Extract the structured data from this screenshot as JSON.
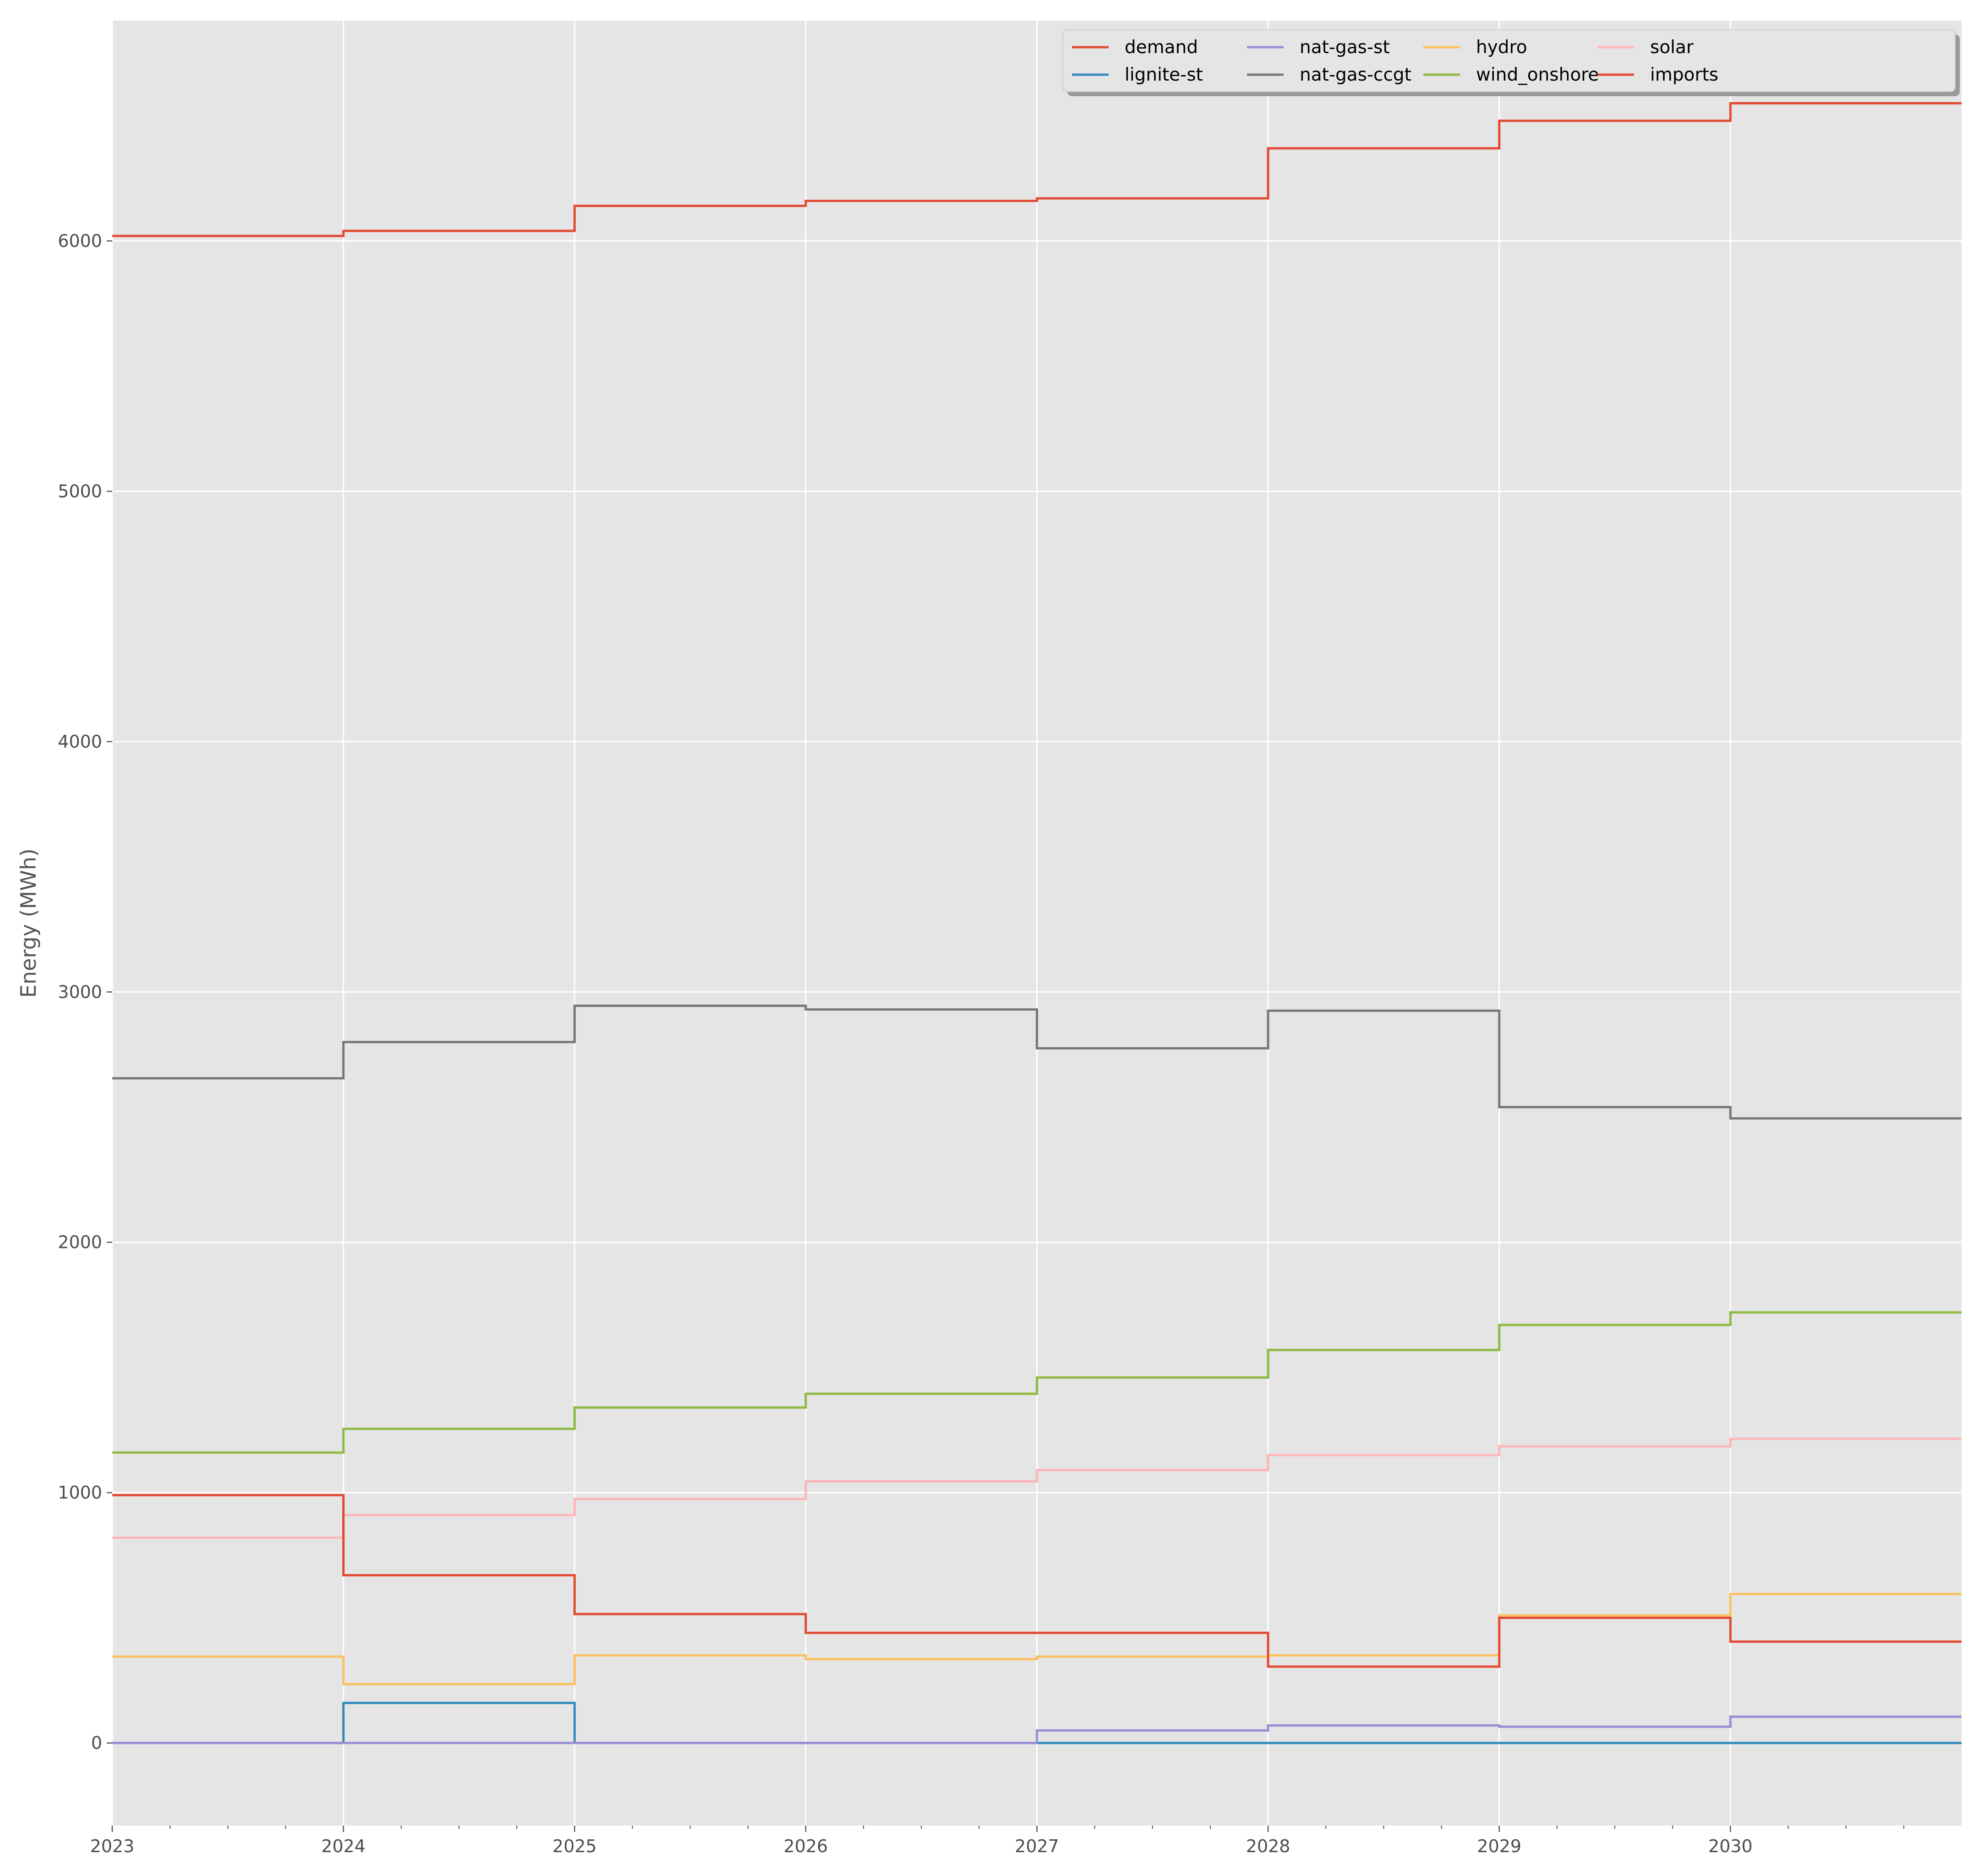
{
  "chart_data": {
    "type": "line",
    "step": true,
    "title": "",
    "xlabel": "",
    "ylabel": "Energy (MWh)",
    "x": [
      2023,
      2024,
      2025,
      2026,
      2027,
      2028,
      2029,
      2030
    ],
    "xlim": [
      2023,
      2031
    ],
    "ylim": [
      -330,
      6880
    ],
    "x_ticks": [
      "2023",
      "2024",
      "2025",
      "2026",
      "2027",
      "2028",
      "2029",
      "2030"
    ],
    "y_ticks": [
      "0",
      "1000",
      "2000",
      "3000",
      "4000",
      "5000",
      "6000"
    ],
    "grid": true,
    "legend_position": "top-right",
    "legend_columns": 5,
    "series": [
      {
        "name": "demand",
        "color": "#E24A33",
        "values": [
          6020,
          6040,
          6140,
          6160,
          6170,
          6370,
          6480,
          6550
        ]
      },
      {
        "name": "lignite-st",
        "color": "#348ABD",
        "values": [
          0,
          160,
          0,
          0,
          0,
          0,
          0,
          0
        ]
      },
      {
        "name": "nat-gas-st",
        "color": "#988ED5",
        "values": [
          0,
          0,
          0,
          0,
          50,
          70,
          65,
          105
        ]
      },
      {
        "name": "nat-gas-ccgt",
        "color": "#777777",
        "values": [
          2655,
          2800,
          2945,
          2930,
          2775,
          2925,
          2540,
          2495
        ]
      },
      {
        "name": "hydro",
        "color": "#FBC15E",
        "values": [
          345,
          235,
          350,
          335,
          345,
          350,
          510,
          595
        ]
      },
      {
        "name": "wind_onshore",
        "color": "#8EBA42",
        "values": [
          1160,
          1255,
          1340,
          1395,
          1460,
          1570,
          1670,
          1720
        ]
      },
      {
        "name": "solar",
        "color": "#FFB5B8",
        "values": [
          820,
          910,
          975,
          1045,
          1090,
          1150,
          1185,
          1215
        ]
      },
      {
        "name": "imports",
        "color": "#E24A33",
        "values": [
          990,
          670,
          515,
          440,
          440,
          305,
          500,
          405
        ]
      }
    ]
  }
}
